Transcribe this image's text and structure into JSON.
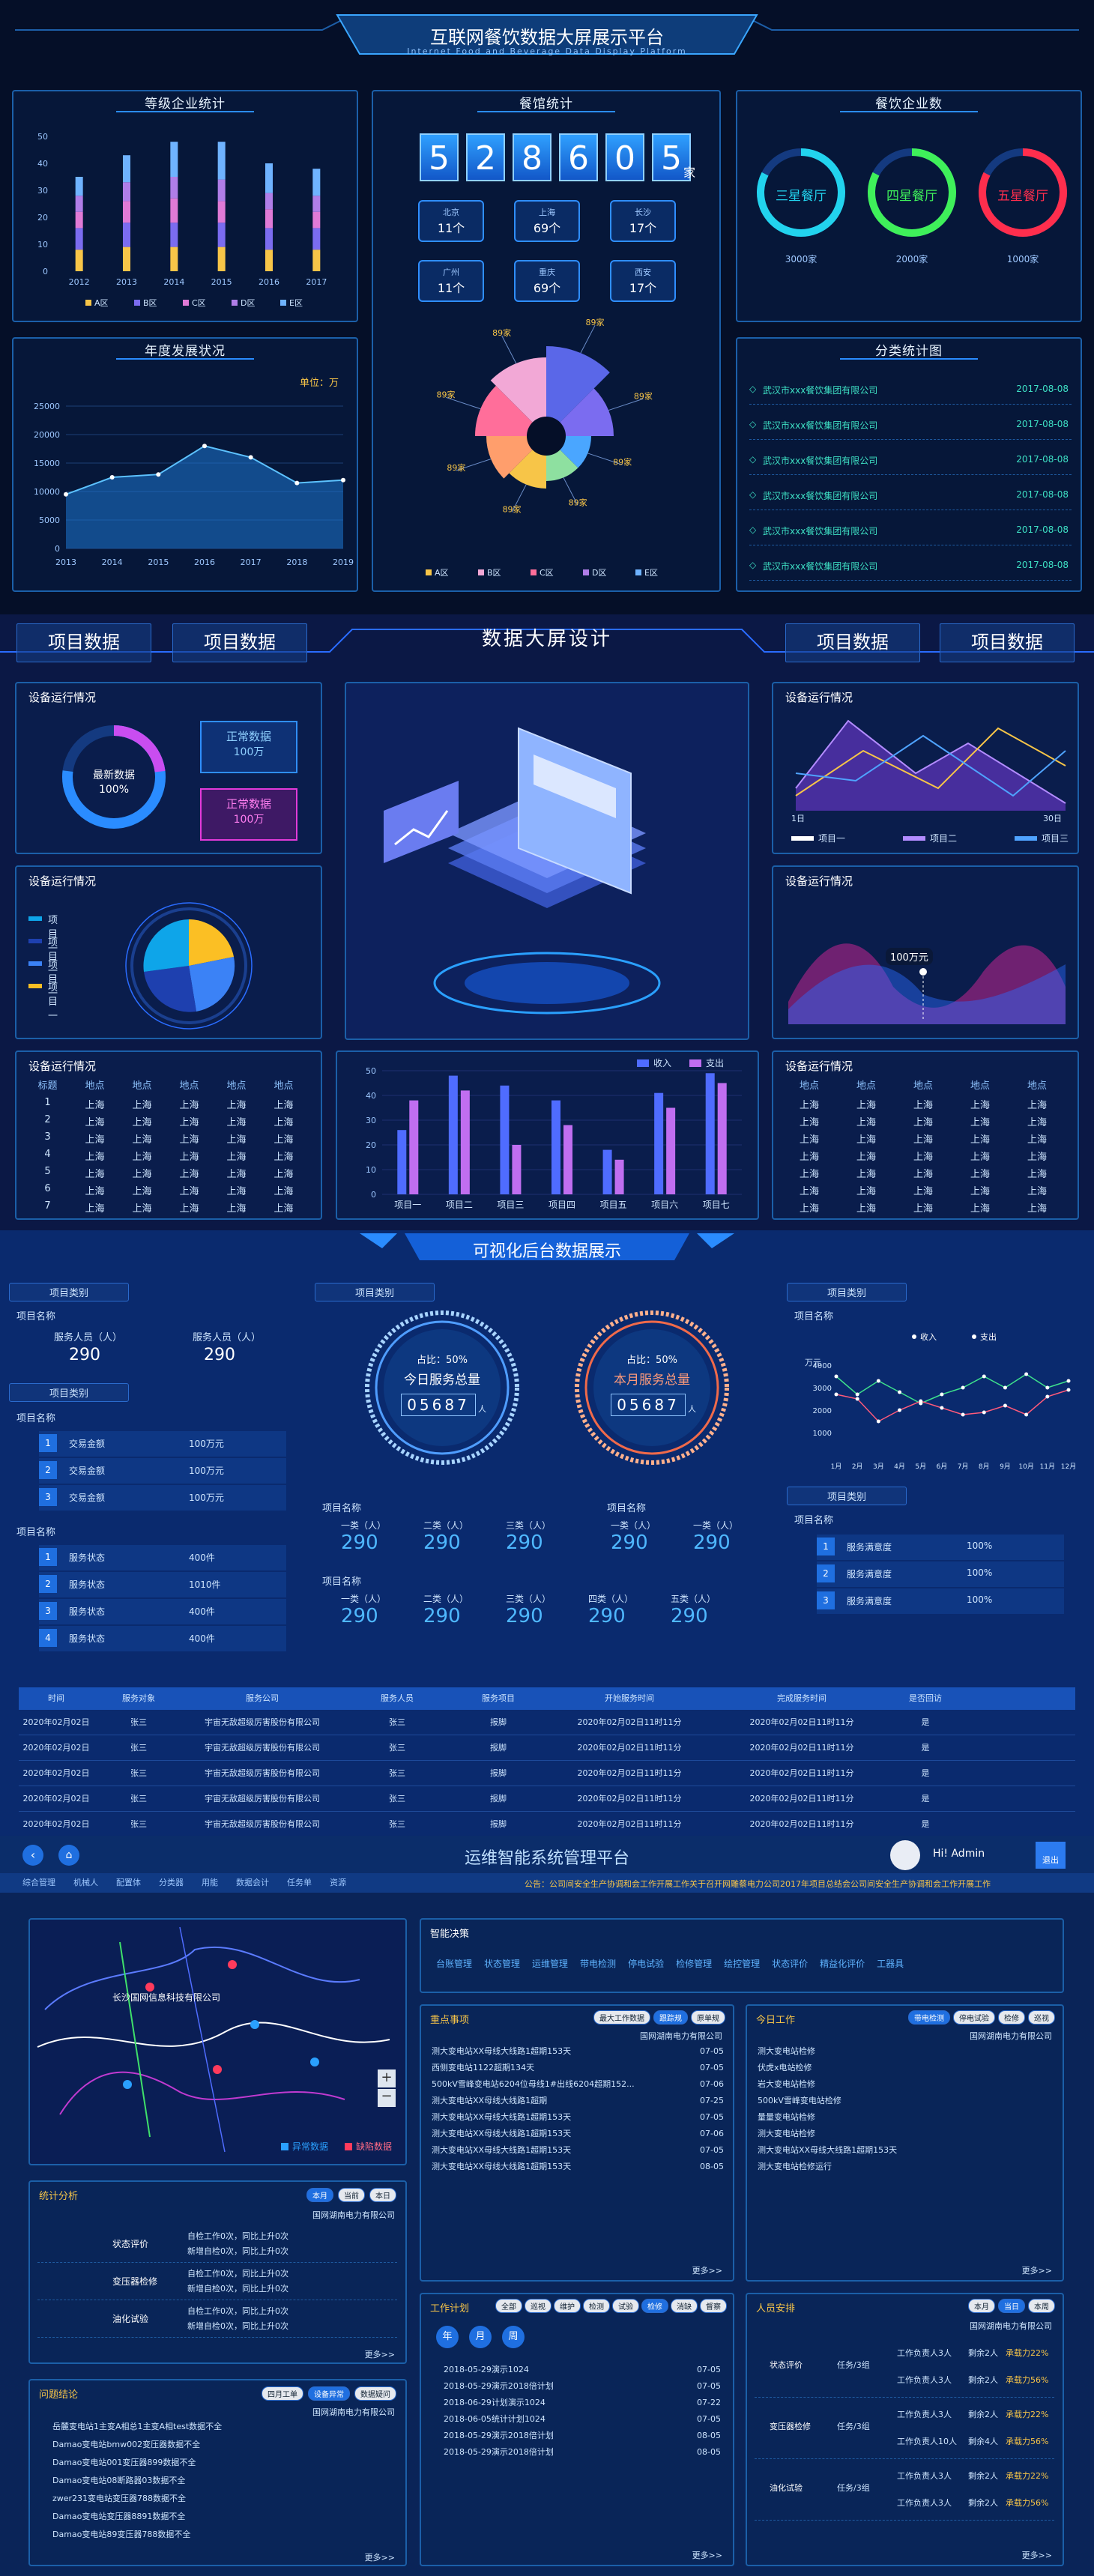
{
  "s1": {
    "title": "互联网餐饮数据大屏展示平台",
    "subtitle": "Internet Food and Beverage Data Display Platform",
    "p1": {
      "title": "等级企业统计",
      "yticks": [
        "50",
        "40",
        "30",
        "20",
        "10",
        "0"
      ],
      "years": [
        "2012",
        "2013",
        "2014",
        "2015",
        "2016",
        "2017"
      ],
      "legend": [
        "A区",
        "B区",
        "C区",
        "D区",
        "E区"
      ],
      "chart_data": {
        "type": "bar",
        "categories": [
          "2012",
          "2013",
          "2014",
          "2015",
          "2016",
          "2017"
        ],
        "ylim": [
          0,
          50
        ],
        "series": [
          {
            "name": "A区",
            "values": [
              8,
              9,
              9,
              9,
              8,
              8
            ]
          },
          {
            "name": "B区",
            "values": [
              8,
              9,
              9,
              9,
              8,
              8
            ]
          },
          {
            "name": "C区",
            "values": [
              6,
              8,
              9,
              8,
              7,
              6
            ]
          },
          {
            "name": "D区",
            "values": [
              6,
              7,
              8,
              8,
              6,
              6
            ]
          },
          {
            "name": "E区",
            "values": [
              7,
              10,
              13,
              14,
              11,
              10
            ]
          }
        ],
        "colors": [
          "#f7c548",
          "#7b6cf0",
          "#e07ad6",
          "#b07ee8",
          "#6fb3ff"
        ]
      }
    },
    "p2": {
      "title": "年度发展状况",
      "unit": "单位：万",
      "yticks": [
        "25000",
        "20000",
        "15000",
        "10000",
        "5000",
        "0"
      ],
      "years": [
        "2013",
        "2014",
        "2015",
        "2016",
        "2017",
        "2018",
        "2019"
      ],
      "chart_data": {
        "type": "area",
        "x": [
          "2013",
          "2014",
          "2015",
          "2016",
          "2017",
          "2018",
          "2019"
        ],
        "values": [
          9500,
          12500,
          13000,
          18000,
          16000,
          11500,
          12000
        ],
        "ylim": [
          0,
          25000
        ]
      }
    },
    "p3": {
      "title": "餐馆统计",
      "digits": [
        "5",
        "2",
        "8",
        "6",
        "0",
        "5"
      ],
      "unit": "家",
      "cities": [
        {
          "name": "北京",
          "value": "11个"
        },
        {
          "name": "上海",
          "value": "69个"
        },
        {
          "name": "长沙",
          "value": "17个"
        },
        {
          "name": "广州",
          "value": "11个"
        },
        {
          "name": "重庆",
          "value": "69个"
        },
        {
          "name": "西安",
          "value": "17个"
        }
      ],
      "rose_labels": [
        "89家",
        "89家",
        "89家",
        "89家",
        "89家",
        "89家",
        "89家",
        "89家"
      ],
      "legend": [
        "A区",
        "B区",
        "C区",
        "D区",
        "E区"
      ]
    },
    "p4": {
      "title": "餐饮企业数",
      "rings": [
        {
          "label": "三星餐厅",
          "value": "3000家",
          "color": "#22d3ee"
        },
        {
          "label": "四星餐厅",
          "value": "2000家",
          "color": "#3ff05a"
        },
        {
          "label": "五星餐厅",
          "value": "1000家",
          "color": "#ff2e4d"
        }
      ]
    },
    "p5": {
      "title": "分类统计图",
      "rows": [
        {
          "name": "武汉市xxx餐饮集团有限公司",
          "date": "2017-08-08"
        },
        {
          "name": "武汉市xxx餐饮集团有限公司",
          "date": "2017-08-08"
        },
        {
          "name": "武汉市xxx餐饮集团有限公司",
          "date": "2017-08-08"
        },
        {
          "name": "武汉市xxx餐饮集团有限公司",
          "date": "2017-08-08"
        },
        {
          "name": "武汉市xxx餐饮集团有限公司",
          "date": "2017-08-08"
        },
        {
          "name": "武汉市xxx餐饮集团有限公司",
          "date": "2017-08-08"
        }
      ]
    }
  },
  "s2": {
    "title": "数据大屏设计",
    "tabs": [
      "项目数据",
      "项目数据",
      "项目数据",
      "项目数据"
    ],
    "panel_title": "设备运行情况",
    "gauge": {
      "label": "最新数据",
      "value": "100%"
    },
    "boxes": [
      {
        "label": "正常数据",
        "value": "100万"
      },
      {
        "label": "正常数据",
        "value": "100万"
      }
    ],
    "pie_legend": [
      "项目一",
      "项目一",
      "项目一",
      "项目一"
    ],
    "line_axis": [
      "1日",
      "30日"
    ],
    "line_legend": [
      "项目一",
      "项目二",
      "项目三"
    ],
    "wave_value": "100万元",
    "table_headers": [
      "标题",
      "地点",
      "地点",
      "地点",
      "地点",
      "地点"
    ],
    "table_rows": [
      [
        "1",
        "上海",
        "上海",
        "上海",
        "上海",
        "上海"
      ],
      [
        "2",
        "上海",
        "上海",
        "上海",
        "上海",
        "上海"
      ],
      [
        "3",
        "上海",
        "上海",
        "上海",
        "上海",
        "上海"
      ],
      [
        "4",
        "上海",
        "上海",
        "上海",
        "上海",
        "上海"
      ],
      [
        "5",
        "上海",
        "上海",
        "上海",
        "上海",
        "上海"
      ],
      [
        "6",
        "上海",
        "上海",
        "上海",
        "上海",
        "上海"
      ],
      [
        "7",
        "上海",
        "上海",
        "上海",
        "上海",
        "上海"
      ]
    ],
    "table2_headers": [
      "地点",
      "地点",
      "地点",
      "地点",
      "地点"
    ],
    "table2_rows": [
      [
        "上海",
        "上海",
        "上海",
        "上海",
        "上海"
      ],
      [
        "上海",
        "上海",
        "上海",
        "上海",
        "上海"
      ],
      [
        "上海",
        "上海",
        "上海",
        "上海",
        "上海"
      ],
      [
        "上海",
        "上海",
        "上海",
        "上海",
        "上海"
      ],
      [
        "上海",
        "上海",
        "上海",
        "上海",
        "上海"
      ],
      [
        "上海",
        "上海",
        "上海",
        "上海",
        "上海"
      ],
      [
        "上海",
        "上海",
        "上海",
        "上海",
        "上海"
      ]
    ],
    "bar_legend": [
      "收入",
      "支出"
    ],
    "bar_yticks": [
      "50",
      "40",
      "30",
      "20",
      "10",
      "0"
    ],
    "chart_data": {
      "type": "bar",
      "categories": [
        "项目一",
        "项目二",
        "项目三",
        "项目四",
        "项目五",
        "项目六",
        "项目七"
      ],
      "ylim": [
        0,
        50
      ],
      "series": [
        {
          "name": "收入",
          "values": [
            26,
            48,
            44,
            38,
            18,
            41,
            49
          ]
        },
        {
          "name": "支出",
          "values": [
            38,
            42,
            20,
            28,
            14,
            35,
            45
          ]
        }
      ]
    }
  },
  "s3": {
    "title": "可视化后台数据展示",
    "badge": "项目类别",
    "item_name": "项目名称",
    "staff": [
      {
        "label": "服务人员（人）",
        "value": "290"
      },
      {
        "label": "服务人员（人）",
        "value": "290"
      }
    ],
    "trades": [
      {
        "n": "1",
        "label": "交易金额",
        "value": "100万元"
      },
      {
        "n": "2",
        "label": "交易金额",
        "value": "100万元"
      },
      {
        "n": "3",
        "label": "交易金额",
        "value": "100万元"
      }
    ],
    "status": [
      {
        "n": "1",
        "label": "服务状态",
        "value": "400件"
      },
      {
        "n": "2",
        "label": "服务状态",
        "value": "1010件"
      },
      {
        "n": "3",
        "label": "服务状态",
        "value": "400件"
      },
      {
        "n": "4",
        "label": "服务状态",
        "value": "400件"
      }
    ],
    "dial1": {
      "ratio": "占比：50%",
      "label": "今日服务总量",
      "digits": "05687",
      "unit": "人"
    },
    "dial2": {
      "ratio": "占比：50%",
      "label": "本月服务总量",
      "digits": "05687",
      "unit": "人"
    },
    "grp1": [
      {
        "label": "一类（人）",
        "value": "290"
      },
      {
        "label": "二类（人）",
        "value": "290"
      },
      {
        "label": "三类（人）",
        "value": "290"
      }
    ],
    "grp2": [
      {
        "label": "一类（人）",
        "value": "290"
      },
      {
        "label": "一类（人）",
        "value": "290"
      }
    ],
    "grp3": [
      {
        "label": "一类（人）",
        "value": "290"
      },
      {
        "label": "二类（人）",
        "value": "290"
      },
      {
        "label": "三类（人）",
        "value": "290"
      },
      {
        "label": "四类（人）",
        "value": "290"
      },
      {
        "label": "五类（人）",
        "value": "290"
      }
    ],
    "line_unit": "万元",
    "line_legend": [
      "收入",
      "支出"
    ],
    "line_yticks": [
      "4000",
      "3000",
      "2000",
      "1000"
    ],
    "line_x": [
      "1月",
      "2月",
      "3月",
      "4月",
      "5月",
      "6月",
      "7月",
      "8月",
      "9月",
      "10月",
      "11月",
      "12月"
    ],
    "chart_data": {
      "type": "line",
      "x": [
        "1月",
        "2月",
        "3月",
        "4月",
        "5月",
        "6月",
        "7月",
        "8月",
        "9月",
        "10月",
        "11月",
        "12月"
      ],
      "ylim": [
        0,
        4000
      ],
      "series": [
        {
          "name": "收入",
          "values": [
            3500,
            2700,
            3300,
            2800,
            2300,
            2700,
            3000,
            3500,
            3000,
            3600,
            3000,
            3300
          ]
        },
        {
          "name": "支出",
          "values": [
            2700,
            2500,
            1500,
            2000,
            2400,
            2100,
            1800,
            1900,
            2200,
            1800,
            2600,
            2900
          ]
        }
      ]
    },
    "satisfaction": [
      {
        "n": "1",
        "label": "服务满意度",
        "value": "100%"
      },
      {
        "n": "2",
        "label": "服务满意度",
        "value": "100%"
      },
      {
        "n": "3",
        "label": "服务满意度",
        "value": "100%"
      }
    ],
    "table_headers": [
      "时间",
      "服务对象",
      "服务公司",
      "服务人员",
      "服务项目",
      "开始服务时间",
      "完成服务时间",
      "是否回访"
    ],
    "table_rows": [
      [
        "2020年02月02日",
        "张三",
        "宇宙无敌超级厉害股份有限公司",
        "张三",
        "报脚",
        "2020年02月02日11时11分",
        "2020年02月02日11时11分",
        "是"
      ],
      [
        "2020年02月02日",
        "张三",
        "宇宙无敌超级厉害股份有限公司",
        "张三",
        "报脚",
        "2020年02月02日11时11分",
        "2020年02月02日11时11分",
        "是"
      ],
      [
        "2020年02月02日",
        "张三",
        "宇宙无敌超级厉害股份有限公司",
        "张三",
        "报脚",
        "2020年02月02日11时11分",
        "2020年02月02日11时11分",
        "是"
      ],
      [
        "2020年02月02日",
        "张三",
        "宇宙无敌超级厉害股份有限公司",
        "张三",
        "报脚",
        "2020年02月02日11时11分",
        "2020年02月02日11时11分",
        "是"
      ],
      [
        "2020年02月02日",
        "张三",
        "宇宙无敌超级厉害股份有限公司",
        "张三",
        "报脚",
        "2020年02月02日11时11分",
        "2020年02月02日11时11分",
        "是"
      ]
    ]
  },
  "s4": {
    "title": "运维智能系统管理平台",
    "greeting": "Hi! Admin",
    "exit": "退出",
    "nav": [
      "综合管理",
      "机械人",
      "配置体",
      "分类器",
      "用能",
      "数据会计",
      "任务单",
      "资源"
    ],
    "notice": "公告：公司间安全生产协调和会工作开展工作关于召开网雕蔡电力公司2017年项目总结会公司间安全生产协调和会工作开展工作",
    "map_place": "长沙国网信息科技有限公司",
    "map_legend": [
      "异常数据",
      "缺陷数据"
    ],
    "stats": {
      "title": "统计分析",
      "tabs": [
        "本月",
        "当前",
        "本日"
      ],
      "org": "国网湖南电力有限公司",
      "rows": [
        {
          "label": "状态评价",
          "l1": "自检工作0次，同比上升0次",
          "l2": "新增自检0次，同比上升0次"
        },
        {
          "label": "变压器检修",
          "l1": "自检工作0次，同比上升0次",
          "l2": "新增自检0次，同比上升0次"
        },
        {
          "label": "油化试验",
          "l1": "自检工作0次，同比上升0次",
          "l2": "新增自检0次，同比上升0次"
        }
      ],
      "more": "更多>>"
    },
    "issues": {
      "title": "问题结论",
      "tabs": [
        "四月工单",
        "设备异常",
        "数据疑问"
      ],
      "org": "国网湖南电力有限公司",
      "rows": [
        "岳麓变电站1主变A相总1主变A相test数据不全",
        "Damao变电站bmw002变压器数据不全",
        "Damao变电站001变压器899数据不全",
        "Damao变电站08断路器03数据不全",
        "zwer231变电站变压器788数据不全",
        "Damao变电站变压器8891数据不全",
        "Damao变电站89变压器788数据不全"
      ],
      "more": "更多>>"
    },
    "decision": {
      "title": "智能决策",
      "tabs": [
        "台账管理",
        "状态管理",
        "运维管理",
        "带电检测",
        "停电试验",
        "检修管理",
        "绘控管理",
        "状态评价",
        "精益化评价",
        "工器具"
      ]
    },
    "focus": {
      "title": "重点事项",
      "tabs": [
        "最大工作数据",
        "跟踪规",
        "原单规"
      ],
      "org": "国网湖南电力有限公司",
      "rows": [
        {
          "t": "测大变电站XX母线大线路1超期153天",
          "d": "07-05"
        },
        {
          "t": "西侧变电站1122超期134天",
          "d": "07-05"
        },
        {
          "t": "500kV雪峰变电站6204位母线1#出线6204超期152...",
          "d": "07-06"
        },
        {
          "t": "测大变电站XX母线大线路1超期",
          "d": "07-25"
        },
        {
          "t": "测大变电站XX母线大线路1超期153天",
          "d": "07-05"
        },
        {
          "t": "测大变电站XX母线大线路1超期153天",
          "d": "07-06"
        },
        {
          "t": "测大变电站XX母线大线路1超期153天",
          "d": "07-05"
        },
        {
          "t": "测大变电站XX母线大线路1超期153天",
          "d": "08-05"
        }
      ],
      "more": "更多>>"
    },
    "today": {
      "title": "今日工作",
      "tabs": [
        "带电检测",
        "停电试验",
        "检修",
        "巡视"
      ],
      "org": "国网湖南电力有限公司",
      "rows": [
        "测大变电站检修",
        "伏虎x电站检修",
        "岩大变电站检修",
        "500kV雪峰变电站检修",
        "量量变电站检修",
        "测大变电站检修",
        "测大变电站XX母线大线路1超期153天",
        "测大变电站检修运行"
      ],
      "more": "更多>>"
    },
    "plan": {
      "title": "工作计划",
      "tabs": [
        "全部",
        "巡视",
        "维护",
        "检测",
        "试验",
        "检修",
        "消缺",
        "督察"
      ],
      "circles": [
        "年",
        "月",
        "周"
      ],
      "rows": [
        {
          "t": "2018-05-29演示1024",
          "d": "07-05"
        },
        {
          "t": "2018-05-29演示2018倍计划",
          "d": "07-05"
        },
        {
          "t": "2018-06-29计划演示1024",
          "d": "07-22"
        },
        {
          "t": "2018-06-05统计计划1024",
          "d": "07-05"
        },
        {
          "t": "2018-05-29演示2018倍计划",
          "d": "08-05"
        },
        {
          "t": "2018-05-29演示2018倍计划",
          "d": "08-05"
        }
      ],
      "more": "更多>>"
    },
    "people": {
      "title": "人员安排",
      "tabs": [
        "本月",
        "当日",
        "本周"
      ],
      "org": "国网湖南电力有限公司",
      "groups": [
        {
          "label": "状态评价",
          "task": "任务/3组",
          "rows": [
            {
              "a": "工作负责人3人",
              "b": "剩余2人",
              "c": "承载力22%"
            },
            {
              "a": "工作负责人3人",
              "b": "剩余2人",
              "c": "承载力56%"
            }
          ]
        },
        {
          "label": "变压器检修",
          "task": "任务/3组",
          "rows": [
            {
              "a": "工作负责人3人",
              "b": "剩余2人",
              "c": "承载力22%"
            },
            {
              "a": "工作负责人10人",
              "b": "剩余4人",
              "c": "承载力56%"
            }
          ]
        },
        {
          "label": "油化试验",
          "task": "任务/3组",
          "rows": [
            {
              "a": "工作负责人3人",
              "b": "剩余2人",
              "c": "承载力22%"
            },
            {
              "a": "工作负责人3人",
              "b": "剩余2人",
              "c": "承载力56%"
            }
          ]
        }
      ],
      "more": "更多>>"
    }
  }
}
